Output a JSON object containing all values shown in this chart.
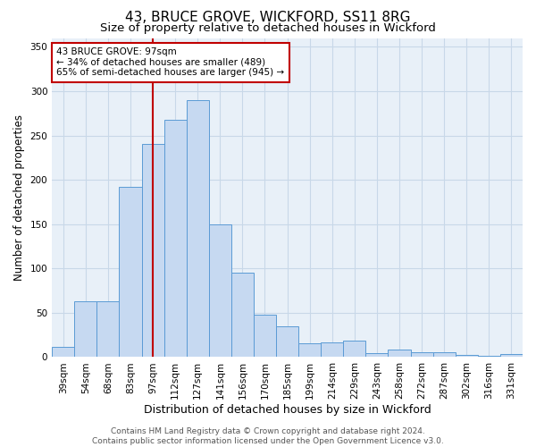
{
  "title": "43, BRUCE GROVE, WICKFORD, SS11 8RG",
  "subtitle": "Size of property relative to detached houses in Wickford",
  "xlabel": "Distribution of detached houses by size in Wickford",
  "ylabel": "Number of detached properties",
  "categories": [
    "39sqm",
    "54sqm",
    "68sqm",
    "83sqm",
    "97sqm",
    "112sqm",
    "127sqm",
    "141sqm",
    "156sqm",
    "170sqm",
    "185sqm",
    "199sqm",
    "214sqm",
    "229sqm",
    "243sqm",
    "258sqm",
    "272sqm",
    "287sqm",
    "302sqm",
    "316sqm",
    "331sqm"
  ],
  "values": [
    12,
    63,
    63,
    192,
    240,
    268,
    290,
    150,
    95,
    48,
    35,
    16,
    17,
    19,
    5,
    9,
    6,
    6,
    2,
    1,
    3
  ],
  "bar_color": "#c6d9f1",
  "bar_edge_color": "#5b9bd5",
  "grid_color": "#c8d8e8",
  "vline_x_idx": 4,
  "vline_color": "#c00000",
  "annotation_lines": [
    "43 BRUCE GROVE: 97sqm",
    "← 34% of detached houses are smaller (489)",
    "65% of semi-detached houses are larger (945) →"
  ],
  "annotation_box_color": "#c00000",
  "footer_lines": [
    "Contains HM Land Registry data © Crown copyright and database right 2024.",
    "Contains public sector information licensed under the Open Government Licence v3.0."
  ],
  "ylim": [
    0,
    360
  ],
  "yticks": [
    0,
    50,
    100,
    150,
    200,
    250,
    300,
    350
  ],
  "background_color": "#ffffff",
  "axes_bg_color": "#e8f0f8",
  "title_fontsize": 11,
  "subtitle_fontsize": 9.5,
  "xlabel_fontsize": 9,
  "ylabel_fontsize": 8.5,
  "tick_fontsize": 7.5,
  "annotation_fontsize": 7.5,
  "footer_fontsize": 6.5
}
